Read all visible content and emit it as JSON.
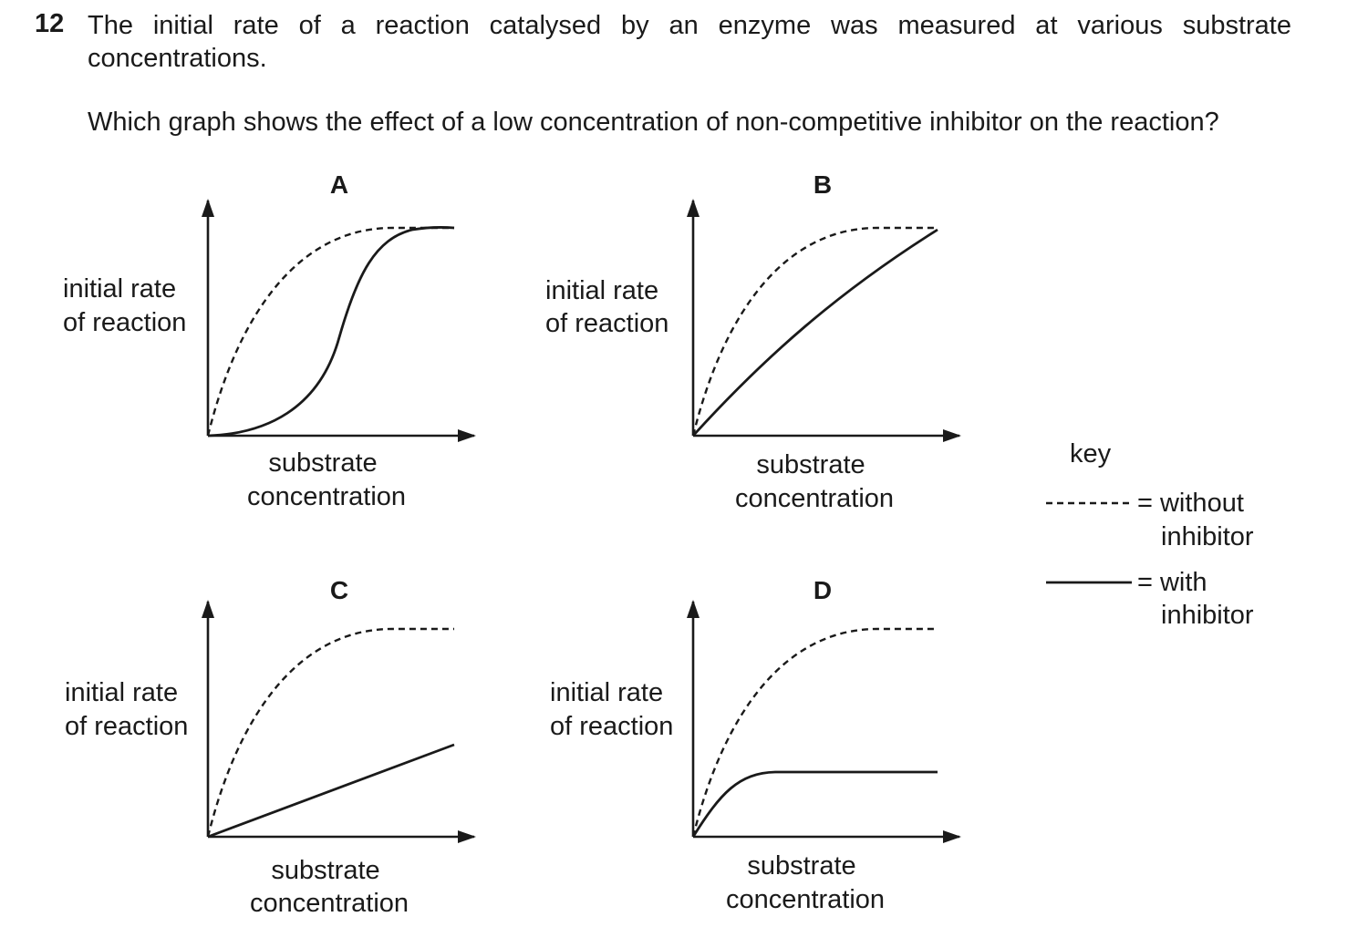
{
  "question": {
    "number": "12",
    "text": "The initial rate of a reaction catalysed by an enzyme was measured at various substrate concentrations.",
    "prompt": "Which graph shows the effect of a low concentration of non-competitive inhibitor on the reaction?"
  },
  "graphs": [
    {
      "letter": "A",
      "ylabel": [
        "initial rate",
        "of reaction"
      ],
      "xlabel": [
        "substrate",
        "concentration"
      ]
    },
    {
      "letter": "B",
      "ylabel": [
        "initial rate",
        "of reaction"
      ],
      "xlabel": [
        "substrate",
        "concentration"
      ]
    },
    {
      "letter": "C",
      "ylabel": [
        "initial rate",
        "of reaction"
      ],
      "xlabel": [
        "substrate",
        "concentration"
      ]
    },
    {
      "letter": "D",
      "ylabel": [
        "initial rate",
        "of reaction"
      ],
      "xlabel": [
        "substrate",
        "concentration"
      ]
    }
  ],
  "key": {
    "title": "key",
    "without": [
      "= without",
      "inhibitor"
    ],
    "with": [
      "= with",
      "inhibitor"
    ]
  }
}
